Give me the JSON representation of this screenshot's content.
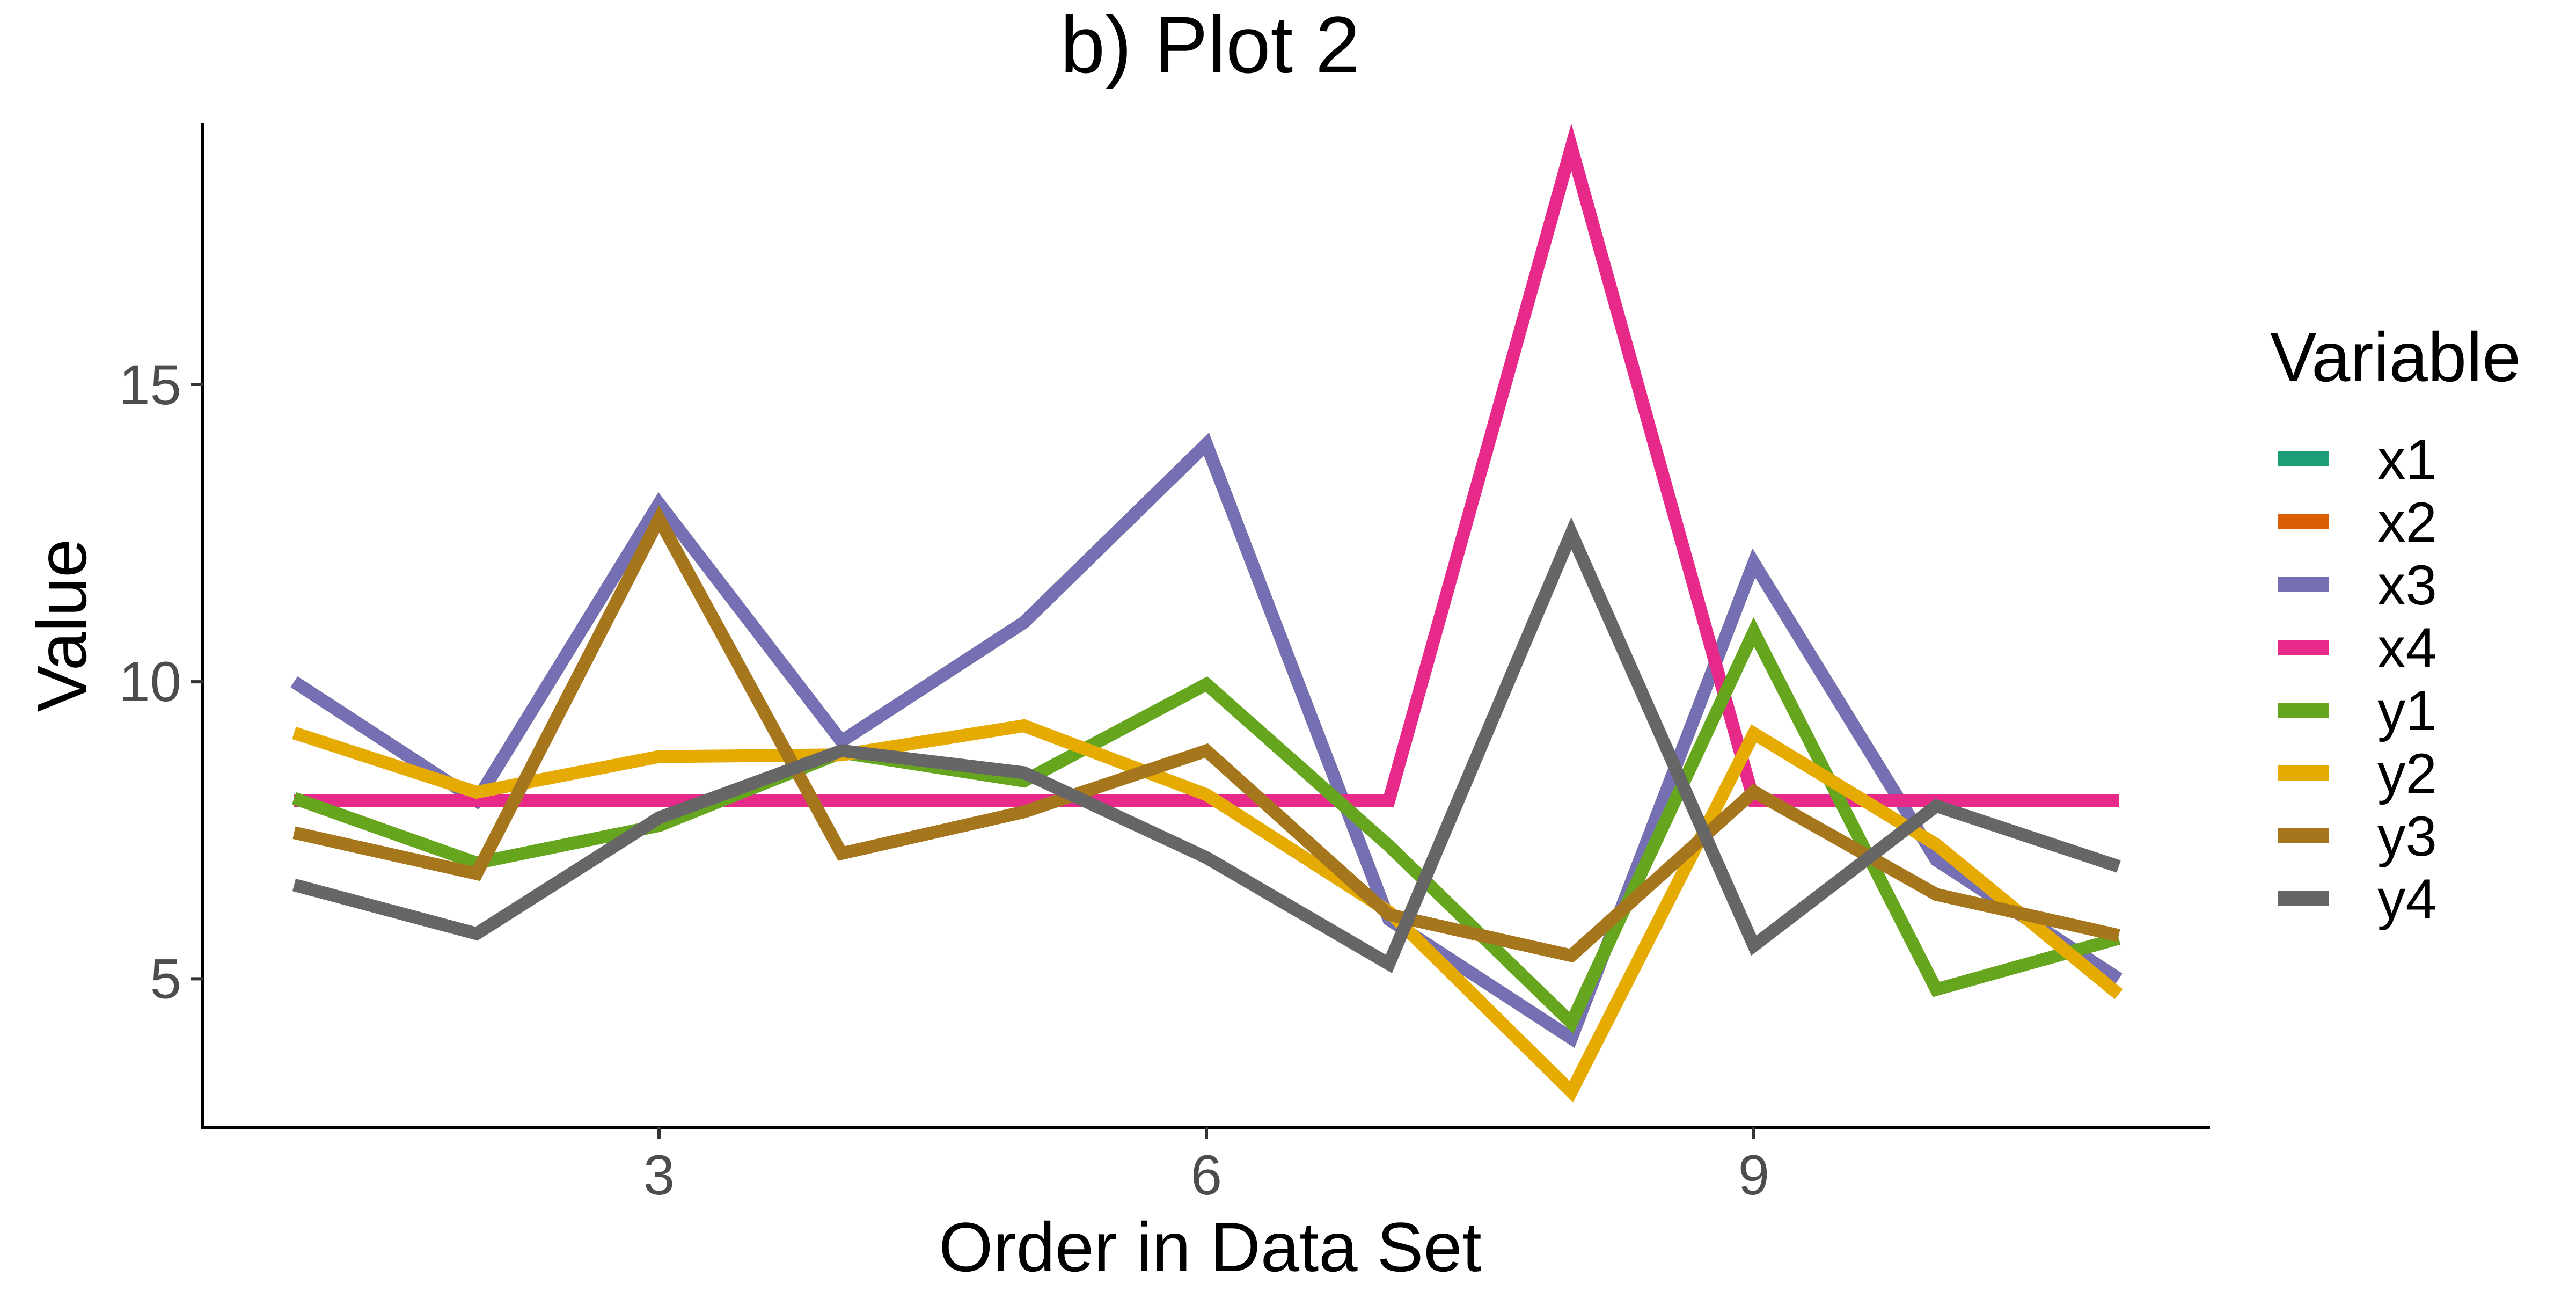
{
  "chart_data": {
    "type": "line",
    "title": "b) Plot 2",
    "xlabel": "Order in Data Set",
    "ylabel": "Value",
    "legend_title": "Variable",
    "legend_position": "right",
    "grid": false,
    "xlim": [
      0.5,
      11.5
    ],
    "ylim": [
      2.5,
      19.4
    ],
    "x_ticks": [
      3,
      6,
      9
    ],
    "y_ticks": [
      5,
      10,
      15
    ],
    "x": [
      1,
      2,
      3,
      4,
      5,
      6,
      7,
      8,
      9,
      10,
      11
    ],
    "series": [
      {
        "name": "x1",
        "color": "#1B9E77",
        "values": [
          10,
          8,
          13,
          9,
          11,
          14,
          6,
          4,
          12,
          7,
          5
        ]
      },
      {
        "name": "x2",
        "color": "#D95F02",
        "values": [
          10,
          8,
          13,
          9,
          11,
          14,
          6,
          4,
          12,
          7,
          5
        ]
      },
      {
        "name": "x3",
        "color": "#7570B3",
        "values": [
          10,
          8,
          13,
          9,
          11,
          14,
          6,
          4,
          12,
          7,
          5
        ]
      },
      {
        "name": "x4",
        "color": "#E7298A",
        "values": [
          8,
          8,
          8,
          8,
          8,
          8,
          8,
          19,
          8,
          8,
          8
        ]
      },
      {
        "name": "y1",
        "color": "#66A61E",
        "values": [
          8.04,
          6.95,
          7.58,
          8.81,
          8.33,
          9.96,
          7.24,
          4.26,
          10.84,
          4.82,
          5.68
        ]
      },
      {
        "name": "y2",
        "color": "#E6AB02",
        "values": [
          9.14,
          8.14,
          8.74,
          8.77,
          9.26,
          8.1,
          6.13,
          3.1,
          9.13,
          7.26,
          4.74
        ]
      },
      {
        "name": "y3",
        "color": "#A6761D",
        "values": [
          7.46,
          6.77,
          12.74,
          7.11,
          7.81,
          8.84,
          6.08,
          5.39,
          8.15,
          6.42,
          5.73
        ]
      },
      {
        "name": "y4",
        "color": "#666666",
        "values": [
          6.58,
          5.76,
          7.71,
          8.84,
          8.47,
          7.04,
          5.25,
          12.5,
          5.56,
          7.91,
          6.89
        ]
      }
    ]
  }
}
